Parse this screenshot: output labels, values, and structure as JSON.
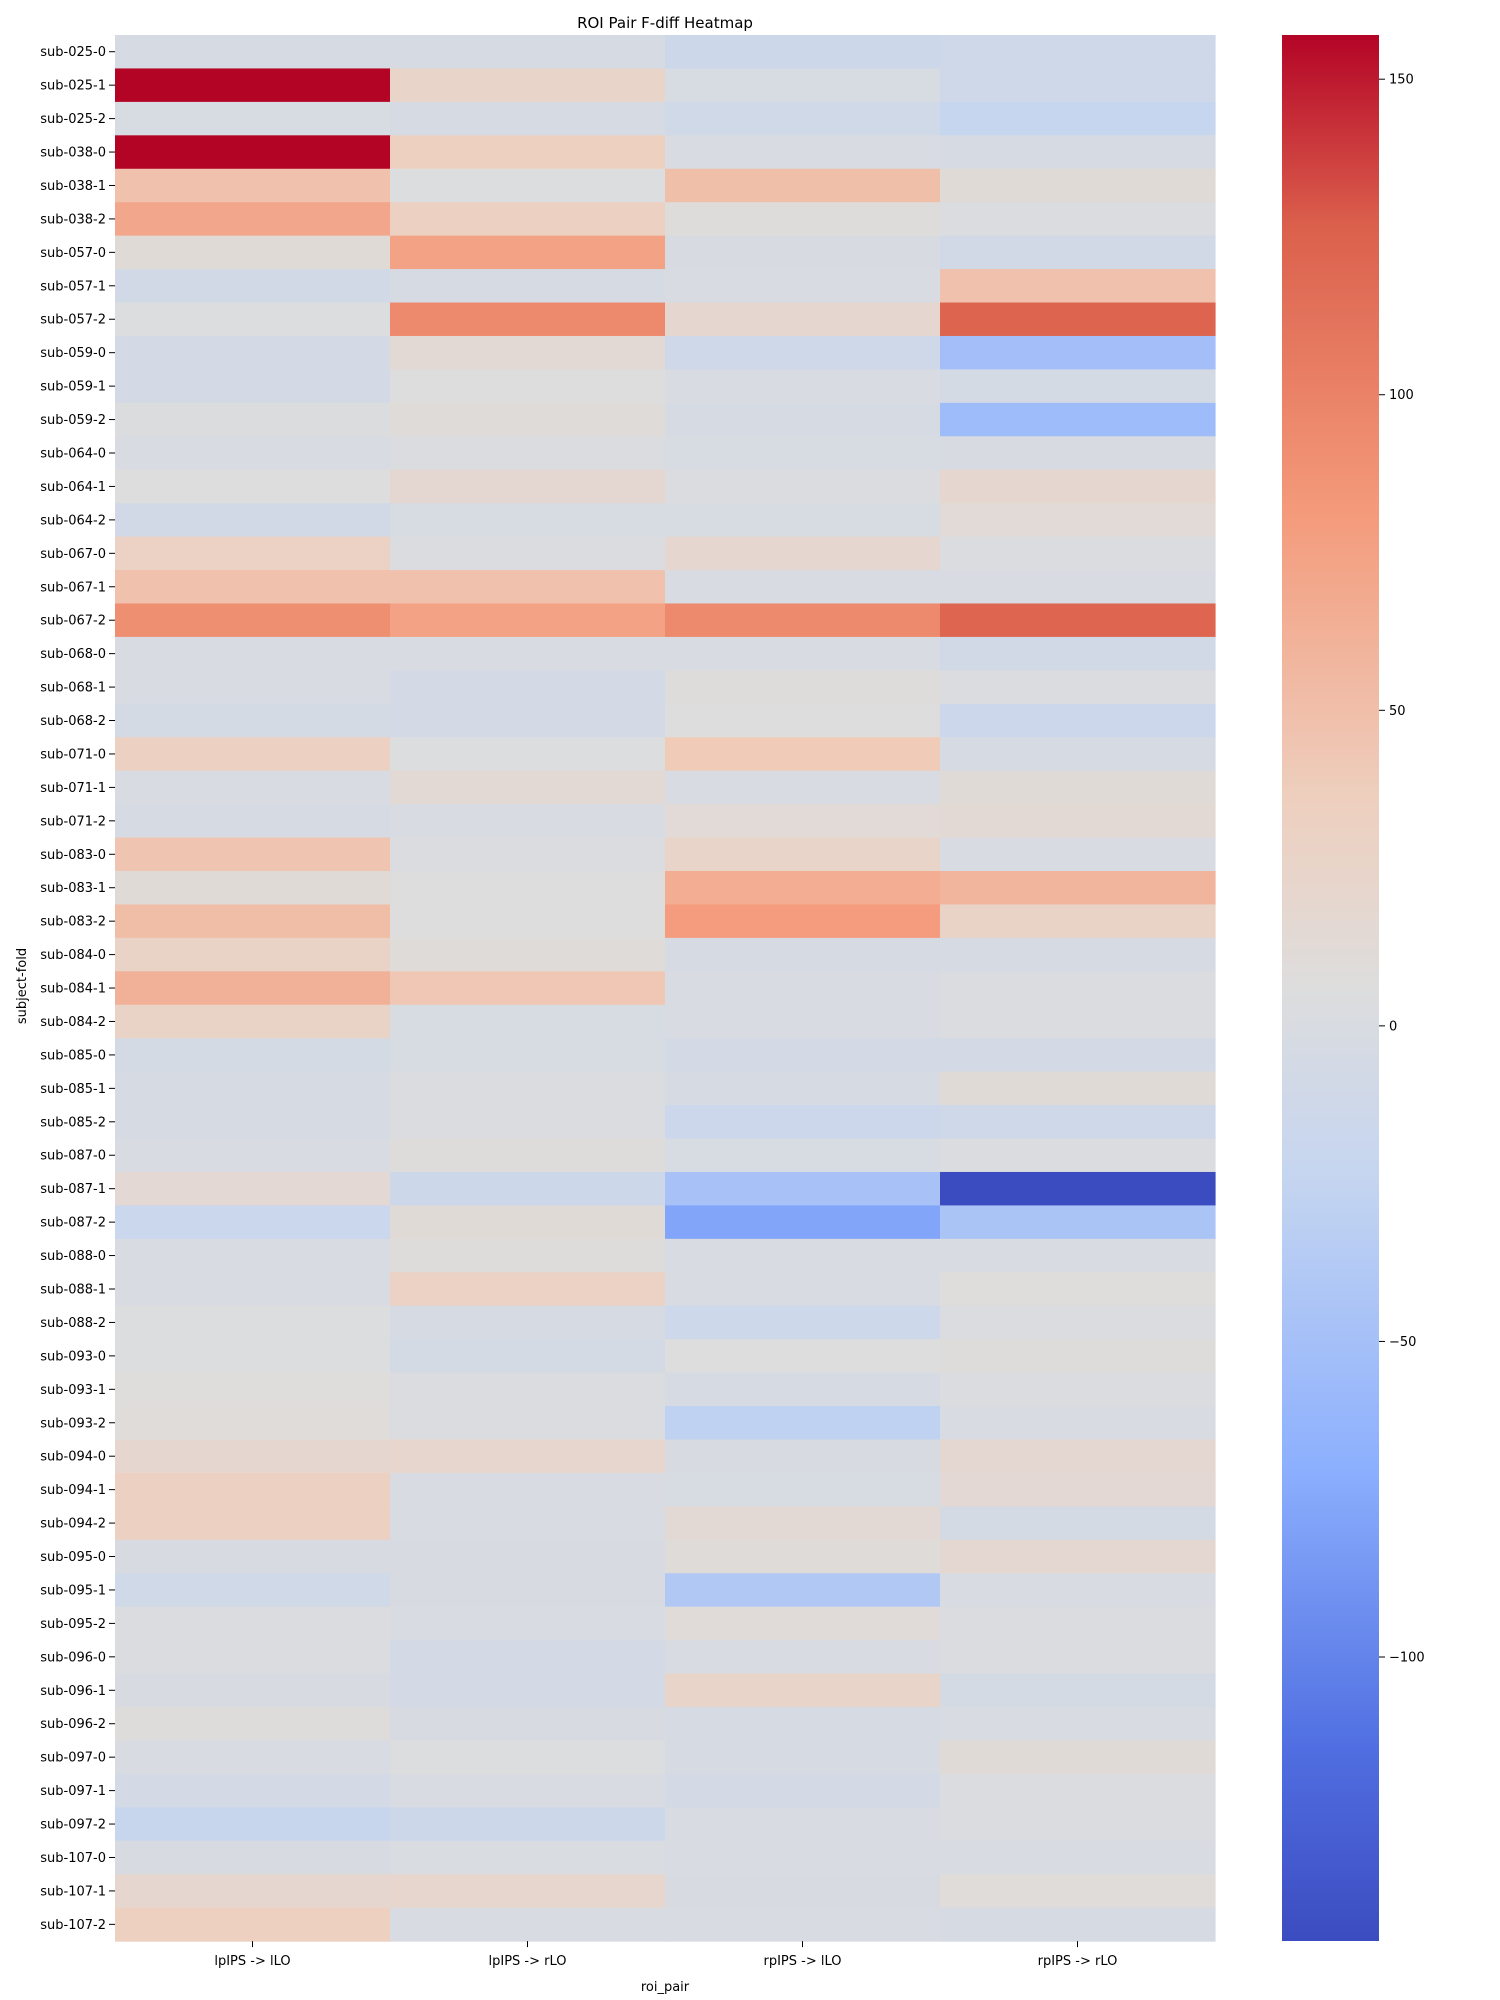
{
  "chart_data": {
    "type": "heatmap",
    "title": "ROI Pair F-diff Heatmap",
    "xlabel": "roi_pair",
    "ylabel": "subject-fold",
    "colormap": "coolwarm",
    "vmin": -145,
    "vmax": 157,
    "colorbar_ticks": [
      150,
      100,
      50,
      0,
      -50,
      -100
    ],
    "colorbar_tick_labels": [
      "150",
      "100",
      "50",
      "0",
      "−50",
      "−100"
    ],
    "columns": [
      "lpIPS -> lLO",
      "lpIPS -> rLO",
      "rpIPS -> lLO",
      "rpIPS -> rLO"
    ],
    "rows": [
      "sub-025-0",
      "sub-025-1",
      "sub-025-2",
      "sub-038-0",
      "sub-038-1",
      "sub-038-2",
      "sub-057-0",
      "sub-057-1",
      "sub-057-2",
      "sub-059-0",
      "sub-059-1",
      "sub-059-2",
      "sub-064-0",
      "sub-064-1",
      "sub-064-2",
      "sub-067-0",
      "sub-067-1",
      "sub-067-2",
      "sub-068-0",
      "sub-068-1",
      "sub-068-2",
      "sub-071-0",
      "sub-071-1",
      "sub-071-2",
      "sub-083-0",
      "sub-083-1",
      "sub-083-2",
      "sub-084-0",
      "sub-084-1",
      "sub-084-2",
      "sub-085-0",
      "sub-085-1",
      "sub-085-2",
      "sub-087-0",
      "sub-087-1",
      "sub-087-2",
      "sub-088-0",
      "sub-088-1",
      "sub-088-2",
      "sub-093-0",
      "sub-093-1",
      "sub-093-2",
      "sub-094-0",
      "sub-094-1",
      "sub-094-2",
      "sub-095-0",
      "sub-095-1",
      "sub-095-2",
      "sub-096-0",
      "sub-096-1",
      "sub-096-2",
      "sub-097-0",
      "sub-097-1",
      "sub-097-2",
      "sub-107-0",
      "sub-107-1",
      "sub-107-2"
    ],
    "values": [
      [
        -3,
        -4,
        -15,
        -13
      ],
      [
        157,
        25,
        -2,
        -12
      ],
      [
        -2,
        -3,
        -10,
        -22
      ],
      [
        157,
        35,
        0,
        -3
      ],
      [
        48,
        5,
        50,
        12
      ],
      [
        70,
        33,
        8,
        3
      ],
      [
        12,
        75,
        -1,
        -8
      ],
      [
        -8,
        -3,
        0,
        48
      ],
      [
        5,
        95,
        20,
        123
      ],
      [
        -6,
        14,
        -12,
        -52
      ],
      [
        -6,
        6,
        0,
        -5
      ],
      [
        4,
        10,
        -3,
        -55
      ],
      [
        0,
        2,
        -2,
        -1
      ],
      [
        6,
        18,
        2,
        20
      ],
      [
        -8,
        -2,
        -2,
        13
      ],
      [
        30,
        3,
        20,
        3
      ],
      [
        48,
        48,
        0,
        0
      ],
      [
        90,
        75,
        95,
        122
      ],
      [
        0,
        0,
        0,
        -8
      ],
      [
        0,
        -6,
        8,
        3
      ],
      [
        -5,
        -6,
        6,
        -16
      ],
      [
        33,
        5,
        40,
        -4
      ],
      [
        0,
        15,
        0,
        12
      ],
      [
        -3,
        0,
        13,
        15
      ],
      [
        45,
        3,
        25,
        0
      ],
      [
        12,
        6,
        65,
        58
      ],
      [
        52,
        6,
        80,
        28
      ],
      [
        28,
        10,
        -4,
        -4
      ],
      [
        62,
        43,
        0,
        2
      ],
      [
        27,
        -2,
        0,
        2
      ],
      [
        -5,
        -2,
        -7,
        -6
      ],
      [
        -3,
        3,
        -3,
        12
      ],
      [
        -4,
        2,
        -16,
        -13
      ],
      [
        0,
        8,
        -2,
        2
      ],
      [
        16,
        -15,
        -48,
        -145
      ],
      [
        -18,
        12,
        -78,
        -45
      ],
      [
        0,
        8,
        0,
        0
      ],
      [
        0,
        30,
        0,
        7
      ],
      [
        5,
        -4,
        -14,
        2
      ],
      [
        5,
        -5,
        6,
        8
      ],
      [
        7,
        2,
        -4,
        3
      ],
      [
        9,
        2,
        -28,
        0
      ],
      [
        20,
        22,
        -1,
        18
      ],
      [
        33,
        0,
        -2,
        16
      ],
      [
        33,
        0,
        15,
        -5
      ],
      [
        -1,
        -1,
        10,
        18
      ],
      [
        -10,
        -1,
        -40,
        0
      ],
      [
        3,
        0,
        11,
        2
      ],
      [
        2,
        -6,
        0,
        3
      ],
      [
        -1,
        -6,
        25,
        -5
      ],
      [
        8,
        -1,
        -3,
        0
      ],
      [
        0,
        5,
        -3,
        12
      ],
      [
        -6,
        0,
        -6,
        2
      ],
      [
        -20,
        -15,
        0,
        3
      ],
      [
        -1,
        1,
        0,
        0
      ],
      [
        20,
        22,
        -1,
        9
      ],
      [
        35,
        0,
        0,
        -4
      ]
    ]
  }
}
